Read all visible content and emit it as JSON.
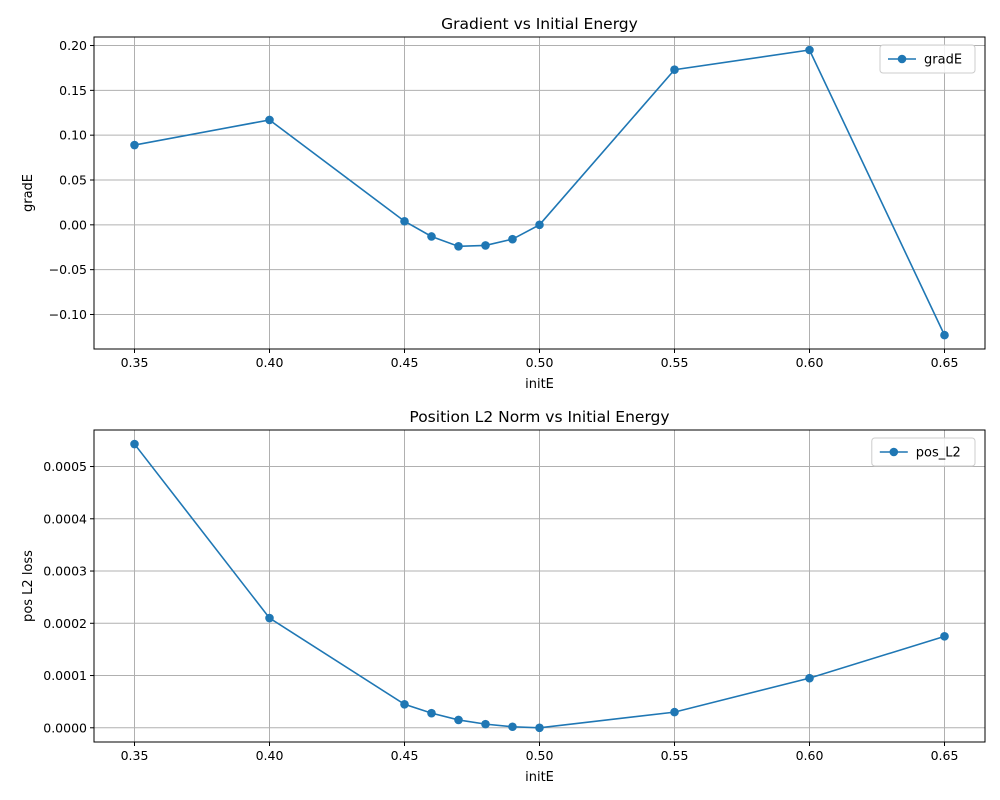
{
  "figure": {
    "background": "#ffffff",
    "line_color": "#1f77b4",
    "grid_color": "#b0b0b0"
  },
  "chart_data": [
    {
      "type": "line",
      "title": "Gradient vs Initial Energy",
      "xlabel": "initE",
      "ylabel": "gradE",
      "xlim": [
        0.335,
        0.665
      ],
      "ylim": [
        -0.1385,
        0.2095
      ],
      "xticks": [
        0.35,
        0.4,
        0.45,
        0.5,
        0.55,
        0.6,
        0.65
      ],
      "xtick_labels": [
        "0.35",
        "0.40",
        "0.45",
        "0.50",
        "0.55",
        "0.60",
        "0.65"
      ],
      "yticks": [
        -0.1,
        -0.05,
        0.0,
        0.05,
        0.1,
        0.15,
        0.2
      ],
      "ytick_labels": [
        "−0.10",
        "−0.05",
        "0.00",
        "0.05",
        "0.10",
        "0.15",
        "0.20"
      ],
      "grid": true,
      "marker": "circle",
      "legend_position": "top-right",
      "series": [
        {
          "name": "gradE",
          "color": "#1f77b4",
          "x": [
            0.35,
            0.4,
            0.45,
            0.46,
            0.47,
            0.48,
            0.49,
            0.5,
            0.55,
            0.6,
            0.65
          ],
          "y": [
            0.089,
            0.117,
            0.004,
            -0.013,
            -0.024,
            -0.023,
            -0.016,
            0.0,
            0.173,
            0.195,
            -0.123
          ]
        }
      ]
    },
    {
      "type": "line",
      "title": "Position L2 Norm vs Initial Energy",
      "xlabel": "initE",
      "ylabel": "pos L2 loss",
      "xlim": [
        0.335,
        0.665
      ],
      "ylim": [
        -2.72e-05,
        0.0005699
      ],
      "xticks": [
        0.35,
        0.4,
        0.45,
        0.5,
        0.55,
        0.6,
        0.65
      ],
      "xtick_labels": [
        "0.35",
        "0.40",
        "0.45",
        "0.50",
        "0.55",
        "0.60",
        "0.65"
      ],
      "yticks": [
        0.0,
        0.0001,
        0.0002,
        0.0003,
        0.0004,
        0.0005
      ],
      "ytick_labels": [
        "0.0000",
        "0.0001",
        "0.0002",
        "0.0003",
        "0.0004",
        "0.0005"
      ],
      "grid": true,
      "marker": "circle",
      "legend_position": "top-right",
      "series": [
        {
          "name": "pos_L2",
          "color": "#1f77b4",
          "x": [
            0.35,
            0.4,
            0.45,
            0.46,
            0.47,
            0.48,
            0.49,
            0.5,
            0.55,
            0.6,
            0.65
          ],
          "y": [
            0.000543,
            0.00021,
            4.5e-05,
            2.8e-05,
            1.5e-05,
            7e-06,
            2e-06,
            0.0,
            3e-05,
            9.5e-05,
            0.000175
          ]
        }
      ]
    }
  ]
}
